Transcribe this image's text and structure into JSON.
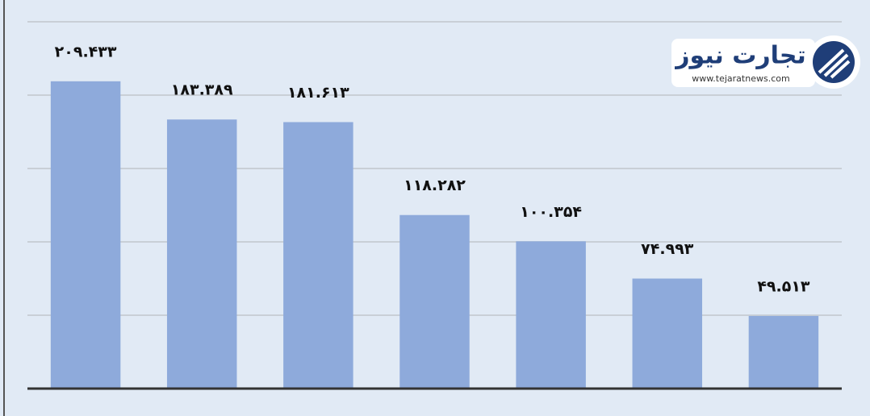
{
  "chart_data": {
    "type": "bar",
    "categories": [
      null,
      null,
      null,
      null,
      null,
      null,
      null
    ],
    "values": [
      209.433,
      183.389,
      181.613,
      118.282,
      100.354,
      74.993,
      49.513
    ],
    "value_labels": [
      "۲۰۹.۴۳۳",
      "۱۸۳.۳۸۹",
      "۱۸۱.۶۱۳",
      "۱۱۸.۲۸۲",
      "۱۰۰.۳۵۴",
      "۷۴.۹۹۳",
      "۴۹.۵۱۳"
    ],
    "color": "#8eaadb",
    "ylim": [
      0,
      250
    ],
    "yticks": [
      50,
      100,
      150,
      200,
      250
    ],
    "grid": true,
    "annotations": [
      "تجارت نیوز",
      "www.tejaratnews.com"
    ]
  }
}
